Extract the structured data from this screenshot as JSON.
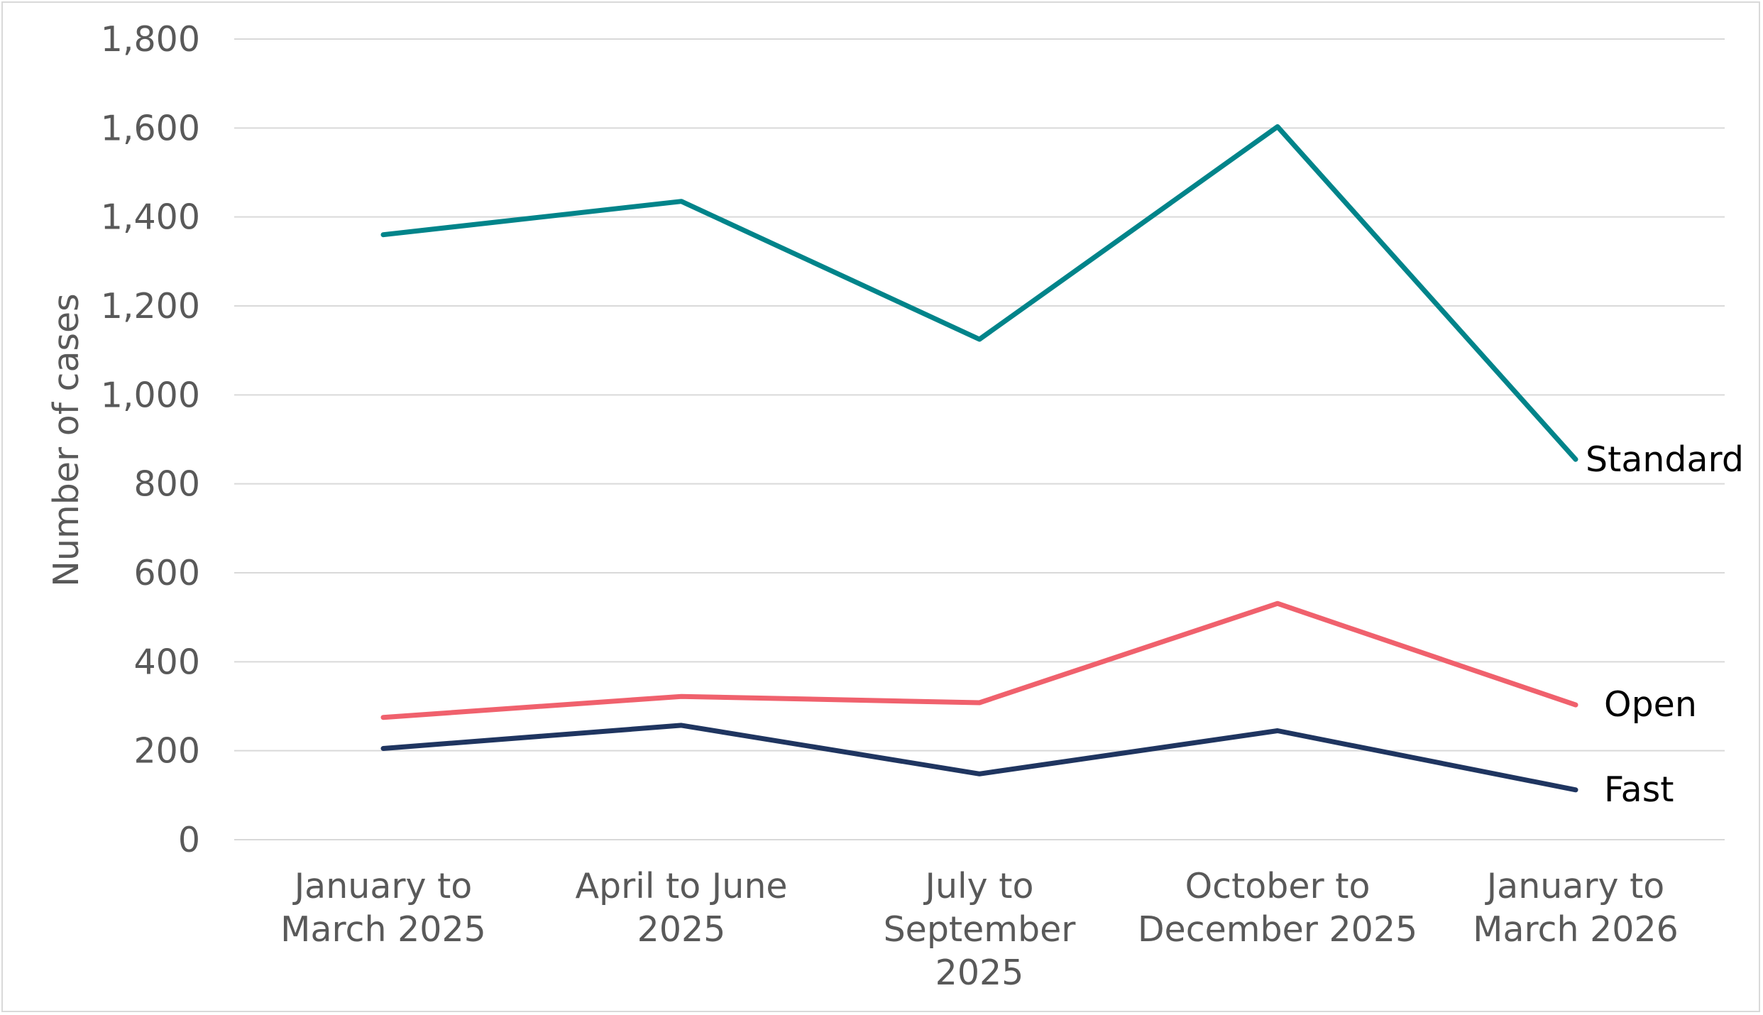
{
  "chart_data": {
    "type": "line",
    "ylabel": "Number of cases",
    "xlabel": "",
    "ylim": [
      0,
      1800
    ],
    "yticks": [
      0,
      200,
      400,
      600,
      800,
      1000,
      1200,
      1400,
      1600,
      1800
    ],
    "ytick_labels": [
      "0",
      "200",
      "400",
      "600",
      "800",
      "1,000",
      "1,200",
      "1,400",
      "1,600",
      "1,800"
    ],
    "grid": true,
    "legend": "direct labels at line ends",
    "categories": [
      [
        "January to",
        "March 2025"
      ],
      [
        "April to June",
        "2025"
      ],
      [
        "July to",
        "September",
        "2025"
      ],
      [
        "October to",
        "December 2025"
      ],
      [
        "January to",
        "March 2026"
      ]
    ],
    "series": [
      {
        "name": "Standard",
        "color": "#00848a",
        "values": [
          1360,
          1435,
          1125,
          1603,
          855
        ]
      },
      {
        "name": "Open",
        "color": "#f0616d",
        "values": [
          275,
          322,
          308,
          531,
          303
        ]
      },
      {
        "name": "Fast",
        "color": "#1f3560",
        "values": [
          205,
          257,
          148,
          245,
          112
        ]
      }
    ]
  }
}
